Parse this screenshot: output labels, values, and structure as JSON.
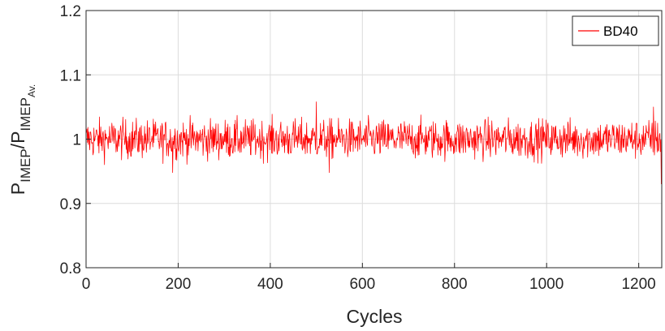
{
  "chart_data": {
    "type": "line",
    "title": "",
    "xlabel": "Cycles",
    "ylabel": {
      "base": "P",
      "numerator_sub": "IMEP",
      "slash": "/",
      "denominator_base": "P",
      "denominator_sub": "IMEP",
      "denominator_subsub": "Av."
    },
    "xlim": [
      0,
      1250
    ],
    "ylim": [
      0.8,
      1.2
    ],
    "xticks": [
      0,
      200,
      400,
      600,
      800,
      1000,
      1200
    ],
    "xtick_labels": [
      "0",
      "200",
      "400",
      "600",
      "800",
      "1000",
      "1200"
    ],
    "yticks": [
      0.8,
      0.9,
      1.0,
      1.1,
      1.2
    ],
    "ytick_labels": [
      "0.8",
      "0.9",
      "1",
      "1.1",
      "1.2"
    ],
    "grid": true,
    "legend_position": "top-right",
    "series": [
      {
        "name": "BD40",
        "color": "#ff0000",
        "n_cycles": 1250,
        "mean": 1.0,
        "approx_range": [
          0.93,
          1.06
        ],
        "notable_points": [
          {
            "x": 188,
            "y": 0.948
          },
          {
            "x": 500,
            "y": 1.058
          },
          {
            "x": 528,
            "y": 0.948
          },
          {
            "x": 1232,
            "y": 1.05
          },
          {
            "x": 1249,
            "y": 0.93
          }
        ]
      }
    ]
  }
}
